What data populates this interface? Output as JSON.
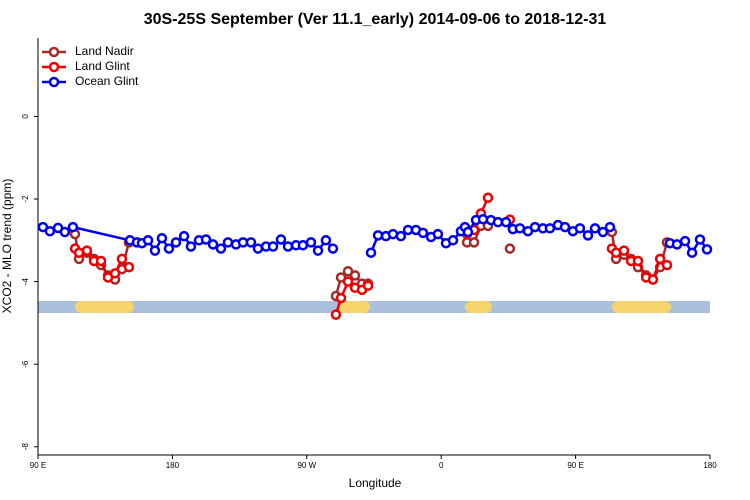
{
  "chart_data": {
    "type": "line",
    "title": "30S-25S September (Ver 11.1_early)   2014-09-06 to 2018-12-31",
    "x_label": "Longitude",
    "y_label": "XCO2 - MLO trend (ppm)",
    "xlim": [
      90,
      540
    ],
    "xticks": [
      {
        "value": 90,
        "label": "90 E"
      },
      180,
      {
        "value": 270,
        "label": "90 W"
      },
      {
        "value": 360,
        "label": "0"
      },
      {
        "value": 450,
        "label": "90 E"
      },
      {
        "value": 540,
        "label": "180"
      }
    ],
    "ylim": [
      -8.2,
      1.9
    ],
    "yticks": [
      -8,
      -6,
      -4,
      -2,
      0
    ],
    "legend": "top-left",
    "series": [
      {
        "name": "Land Nadir",
        "color": "#a52a2a",
        "x": [
          114.8,
          117.5,
          122.8,
          127.5,
          132.2,
          136.9,
          141.6,
          146.2,
          150.9,
          null,
          289.5,
          292.9,
          297.6,
          302.3,
          307,
          311,
          null,
          377.3,
          382,
          386.6,
          391.3,
          null,
          406,
          null,
          474.3,
          477.1,
          482.4,
          487.1,
          491.8,
          497.2,
          501.8,
          506.6,
          511.2
        ],
        "values": [
          -2.85,
          -3.45,
          -3.3,
          -3.45,
          -3.6,
          -3.85,
          -3.95,
          -3.7,
          -3.05,
          null,
          -4.35,
          -3.9,
          -3.75,
          -3.85,
          -4.05,
          -4.05,
          null,
          -3.05,
          -3.05,
          -2.65,
          -2.65,
          null,
          -3.2,
          null,
          -2.8,
          -3.45,
          -3.35,
          -3.45,
          -3.65,
          -3.85,
          -3.95,
          -3.65,
          -3.05
        ]
      },
      {
        "name": "Land Glint",
        "color": "#ee0000",
        "x": [
          114.8,
          117.5,
          122.8,
          127.5,
          132.2,
          136.9,
          141.6,
          146.2,
          150.9,
          null,
          289.5,
          292.9,
          297.6,
          302.3,
          307,
          311,
          null,
          377.3,
          382,
          386.6,
          391.3,
          null,
          406,
          null,
          474.3,
          477.1,
          482.4,
          487.1,
          491.8,
          497.2,
          501.8,
          506.6,
          511.2
        ],
        "values": [
          -3.2,
          -3.3,
          -3.25,
          -3.5,
          -3.5,
          -3.9,
          -3.8,
          -3.45,
          -3.65,
          null,
          -4.8,
          -4.4,
          -4.0,
          -4.15,
          -4.2,
          -4.1,
          null,
          -2.85,
          -2.75,
          -2.35,
          -1.97,
          null,
          -2.5,
          null,
          -3.2,
          -3.3,
          -3.25,
          -3.5,
          -3.5,
          -3.9,
          -3.95,
          -3.45,
          -3.6
        ]
      },
      {
        "name": "Ocean Glint",
        "color": "#0000ee",
        "x": [
          93.3,
          98,
          103.4,
          108,
          113.4,
          151.6,
          156.3,
          159.6,
          163.7,
          168.3,
          173,
          177.7,
          182.4,
          187.8,
          192.4,
          197.8,
          202.5,
          207.2,
          212.5,
          217.2,
          222.6,
          227.3,
          232.6,
          237.3,
          242.7,
          247.4,
          252.7,
          257.4,
          262.8,
          267.4,
          272.8,
          277.5,
          282.8,
          287.5,
          null,
          313,
          317.7,
          323,
          327.7,
          333,
          337.8,
          343.1,
          347.8,
          353.2,
          357.8,
          363.2,
          367.9,
          373.2,
          375.9,
          377.9,
          383.3,
          388,
          393.3,
          398,
          403.4,
          408,
          412.7,
          418.1,
          422.8,
          428.1,
          432.8,
          438.2,
          442.9,
          448.2,
          452.9,
          458.3,
          463,
          468.3,
          473,
          null,
          513.2,
          517.9,
          523.3,
          528,
          533.3,
          538
        ],
        "values": [
          -2.68,
          -2.78,
          -2.7,
          -2.8,
          -2.68,
          -3.0,
          -3.05,
          -3.07,
          -3.0,
          -3.25,
          -2.95,
          -3.2,
          -3.05,
          -2.9,
          -3.15,
          -3.0,
          -2.98,
          -3.1,
          -3.2,
          -3.05,
          -3.1,
          -3.05,
          -3.05,
          -3.2,
          -3.15,
          -3.15,
          -2.98,
          -3.15,
          -3.12,
          -3.12,
          -3.05,
          -3.25,
          -3.0,
          -3.2,
          null,
          -3.3,
          -2.88,
          -2.9,
          -2.85,
          -2.9,
          -2.75,
          -2.75,
          -2.82,
          -2.92,
          -2.85,
          -3.07,
          -3.0,
          -2.78,
          -2.68,
          -2.8,
          -2.51,
          -2.49,
          -2.51,
          -2.56,
          -2.56,
          -2.73,
          -2.71,
          -2.78,
          -2.68,
          -2.71,
          -2.71,
          -2.63,
          -2.68,
          -2.78,
          -2.71,
          -2.88,
          -2.71,
          -2.8,
          -2.68,
          null,
          -3.07,
          -3.1,
          -3.02,
          -3.3,
          -2.98,
          -3.22
        ]
      }
    ]
  }
}
